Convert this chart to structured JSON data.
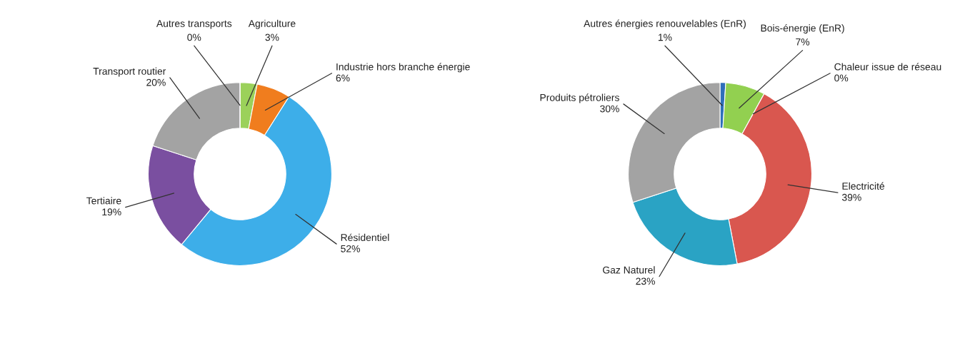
{
  "chart_data": [
    {
      "type": "donut",
      "categories": [
        "Agriculture",
        "Industrie hors branche énergie",
        "Résidentiel",
        "Tertiaire",
        "Transport routier",
        "Autres transports"
      ],
      "values": [
        3,
        6,
        52,
        19,
        20,
        0
      ],
      "value_labels": [
        "3%",
        "6%",
        "52%",
        "19%",
        "20%",
        "0%"
      ],
      "colors": [
        "#9bd15a",
        "#f07d1e",
        "#3daee9",
        "#7a4fa0",
        "#a3a3a3",
        "#2b2b2b"
      ]
    },
    {
      "type": "donut",
      "categories": [
        "Autres énergies renouvelables (EnR)",
        "Bois-énergie (EnR)",
        "Chaleur issue de réseau",
        "Electricité",
        "Gaz Naturel",
        "Produits pétroliers"
      ],
      "values": [
        1,
        7,
        0,
        39,
        23,
        30
      ],
      "value_labels": [
        "1%",
        "7%",
        "0%",
        "39%",
        "23%",
        "30%"
      ],
      "colors": [
        "#2f6fba",
        "#92d050",
        "#e0b000",
        "#d9574f",
        "#2aa3c4",
        "#a3a3a3"
      ]
    }
  ]
}
